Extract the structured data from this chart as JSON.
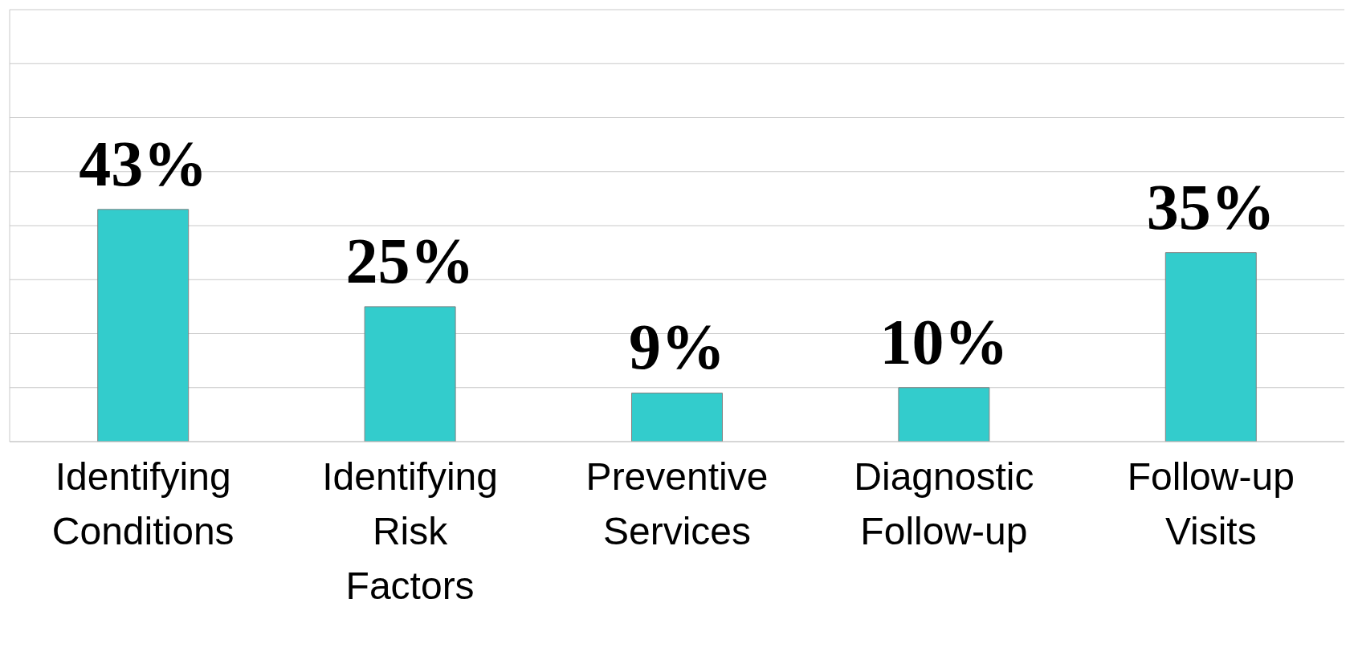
{
  "chart_data": {
    "type": "bar",
    "categories": [
      "Identifying Conditions",
      "Identifying Risk Factors",
      "Preventive Services",
      "Diagnostic Follow-up",
      "Follow-up Visits"
    ],
    "values": [
      43,
      25,
      9,
      10,
      35
    ],
    "value_labels": [
      "43%",
      "25%",
      "9%",
      "10%",
      "35%"
    ],
    "color": "#33cccc",
    "ylim": [
      0,
      80
    ],
    "yticks": [
      {
        "value": 0,
        "label": null
      },
      {
        "value": 10,
        "label": null
      },
      {
        "value": 20,
        "label": null
      },
      {
        "value": 30,
        "label": null
      },
      {
        "value": 40,
        "label": null
      },
      {
        "value": 50,
        "label": null
      },
      {
        "value": 60,
        "label": null
      },
      {
        "value": 70,
        "label": null
      },
      {
        "value": 80,
        "label": null
      }
    ],
    "grid": "y",
    "tick_labels": "x",
    "legend": false
  }
}
